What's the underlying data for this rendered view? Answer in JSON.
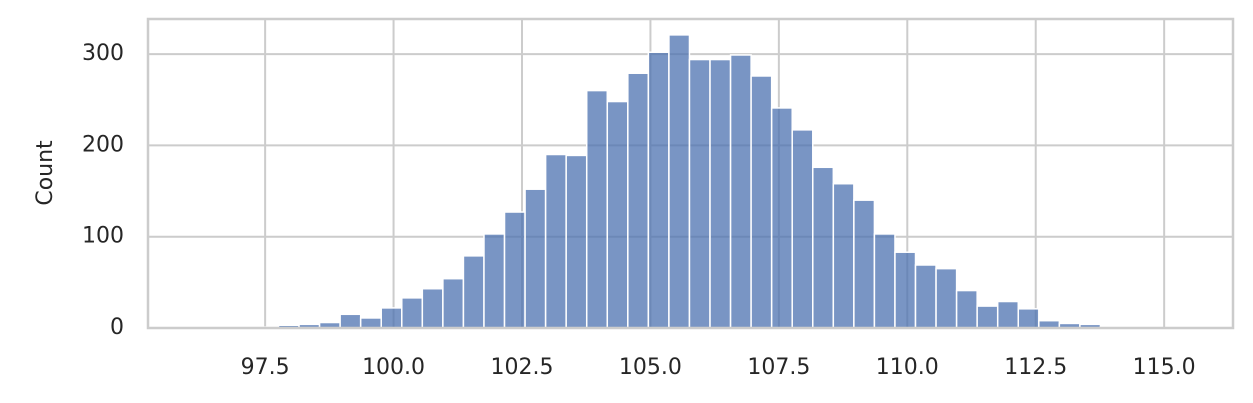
{
  "chart_data": {
    "type": "histogram",
    "y_label": "Count",
    "color": "#4c72b0",
    "grid": true,
    "bins": [
      95.76,
      96.16,
      96.56,
      96.96,
      97.36,
      97.76,
      98.16,
      98.56,
      98.96,
      99.36,
      99.76,
      100.16,
      100.56,
      100.96,
      101.36,
      101.76,
      102.16,
      102.56,
      102.96,
      103.36,
      103.76,
      104.16,
      104.56,
      104.96,
      105.36,
      105.76,
      106.16,
      106.56,
      106.96,
      107.36,
      107.76,
      108.16,
      108.56,
      108.96,
      109.36,
      109.76,
      110.16,
      110.56,
      110.96,
      111.36,
      111.76,
      112.16,
      112.56,
      112.96,
      113.36,
      113.76,
      114.16,
      114.56,
      114.96
    ],
    "counts": [
      1,
      0,
      0,
      1,
      1,
      3,
      4,
      6,
      15,
      11,
      22,
      33,
      43,
      54,
      79,
      103,
      127,
      152,
      190,
      189,
      260,
      248,
      279,
      302,
      321,
      294,
      294,
      299,
      276,
      241,
      217,
      176,
      158,
      140,
      103,
      83,
      69,
      65,
      41,
      24,
      29,
      21,
      8,
      5,
      4,
      1,
      1,
      1
    ],
    "xlim": [
      95.22,
      116.34
    ],
    "ylim": [
      0,
      338.4
    ],
    "xticks": [
      {
        "value": 97.5,
        "label": "97.5"
      },
      {
        "value": 100,
        "label": "100.0"
      },
      {
        "value": 102.5,
        "label": "102.5"
      },
      {
        "value": 105,
        "label": "105.0"
      },
      {
        "value": 107.5,
        "label": "107.5"
      },
      {
        "value": 110,
        "label": "110.0"
      },
      {
        "value": 112.5,
        "label": "112.5"
      },
      {
        "value": 115,
        "label": "115.0"
      }
    ],
    "yticks": [
      0,
      100,
      200,
      300
    ]
  }
}
